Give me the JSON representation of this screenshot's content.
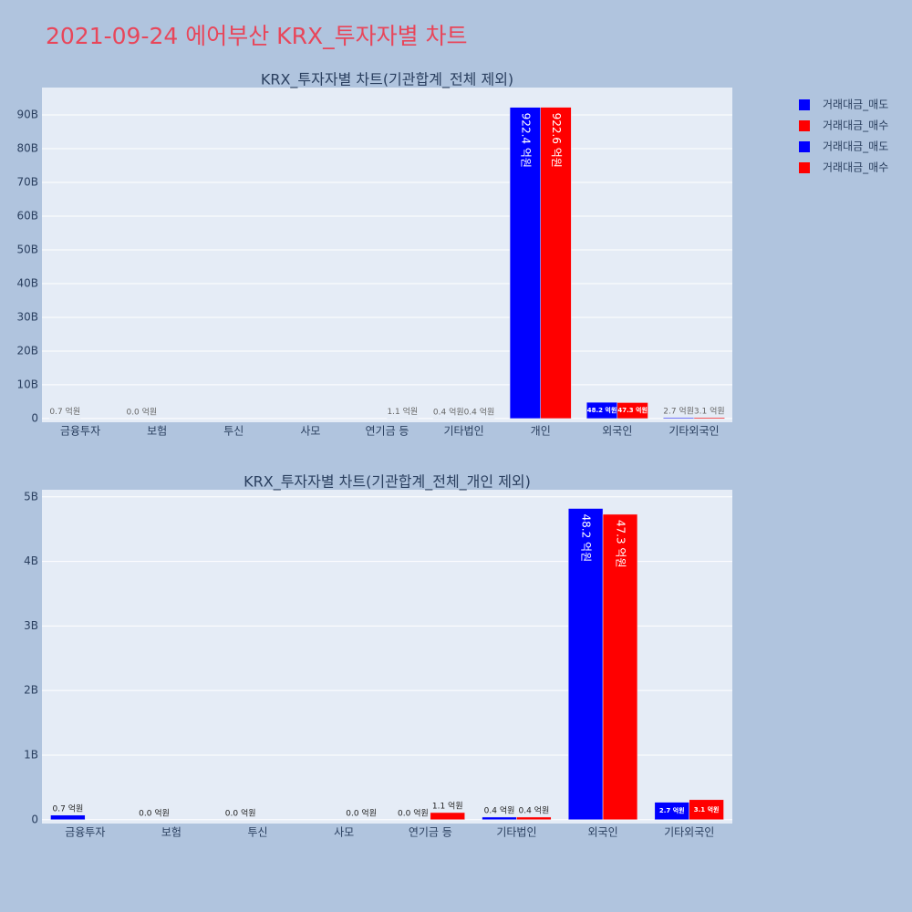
{
  "title": "2021-09-24 에어부산 KRX_투자자별 차트",
  "chart_data": [
    {
      "type": "bar",
      "title": "KRX_투자자별 차트(기관합계_전체 제외)",
      "categories": [
        "금융투자",
        "보험",
        "투신",
        "사모",
        "연기금 등",
        "기타법인",
        "개인",
        "외국인",
        "기타외국인"
      ],
      "series": [
        {
          "name": "거래대금_매도",
          "color": "#0000ff",
          "values": [
            0.07,
            0,
            0,
            null,
            0,
            0.04,
            92.24,
            4.82,
            0.27
          ],
          "value_labels": [
            "0.7 억원",
            "0.0 억원",
            null,
            null,
            null,
            "0.4 억원",
            "922.4 억원",
            "48.2 억원",
            "2.7 억원"
          ]
        },
        {
          "name": "거래대금_매수",
          "color": "#ff0000",
          "values": [
            null,
            null,
            null,
            0,
            0.11,
            0.04,
            92.26,
            4.73,
            0.31
          ],
          "value_labels": [
            null,
            null,
            null,
            null,
            "1.1 억원",
            "0.4 억원",
            "922.6 억원",
            "47.3 억원",
            "3.1 억원"
          ]
        }
      ],
      "ylim": [
        -1.1,
        98.1
      ],
      "yticks": [
        0,
        {
          "value": 10,
          "label": "10B"
        },
        {
          "value": 20,
          "label": "20B"
        },
        {
          "value": 30,
          "label": "30B"
        },
        {
          "value": 40,
          "label": "40B"
        },
        {
          "value": 50,
          "label": "50B"
        },
        {
          "value": 60,
          "label": "60B"
        },
        {
          "value": 70,
          "label": "70B"
        },
        {
          "value": 80,
          "label": "80B"
        },
        {
          "value": 90,
          "label": "90B"
        }
      ],
      "grid": true
    },
    {
      "type": "bar",
      "title": "KRX_투자자별 차트(기관합계_전체_개인 제외)",
      "categories": [
        "금융투자",
        "보험",
        "투신",
        "사모",
        "연기금 등",
        "기타법인",
        "외국인",
        "기타외국인"
      ],
      "series": [
        {
          "name": "거래대금_매도",
          "color": "#0000ff",
          "values": [
            0.07,
            0,
            0,
            null,
            0,
            0.04,
            4.82,
            0.27
          ],
          "value_labels": [
            "0.7 억원",
            "0.0 억원",
            "0.0 억원",
            null,
            "0.0 억원",
            "0.4 억원",
            "48.2 억원",
            "2.7 억원"
          ]
        },
        {
          "name": "거래대금_매수",
          "color": "#ff0000",
          "values": [
            null,
            null,
            null,
            0,
            0.11,
            0.04,
            4.73,
            0.31
          ],
          "value_labels": [
            null,
            null,
            null,
            "0.0 억원",
            "1.1 억원",
            "0.4 억원",
            "47.3 억원",
            "3.1 억원"
          ]
        }
      ],
      "ylim": [
        -0.06,
        5.11
      ],
      "yticks": [
        0,
        {
          "value": 1,
          "label": "1B"
        },
        {
          "value": 2,
          "label": "2B"
        },
        {
          "value": 3,
          "label": "3B"
        },
        {
          "value": 4,
          "label": "4B"
        },
        {
          "value": 5,
          "label": "5B"
        }
      ],
      "grid": true
    }
  ]
}
